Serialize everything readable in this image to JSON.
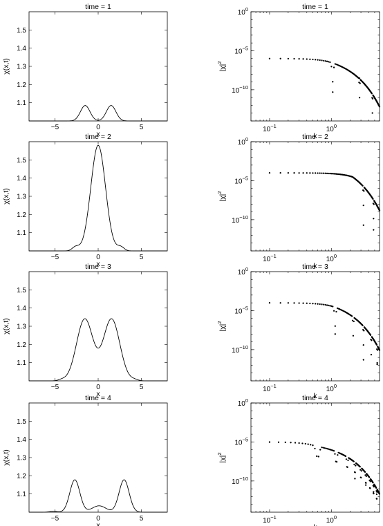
{
  "chart_data": [
    {
      "type": "line",
      "panel": "left-1",
      "title": "time = 1",
      "xlabel": "x",
      "ylabel": "χ(x,t)",
      "xlim": [
        -8,
        8
      ],
      "ylim": [
        1.0,
        1.6
      ],
      "xticks": [
        -5,
        0,
        5
      ],
      "yticks": [
        1.1,
        1.2,
        1.3,
        1.4,
        1.5
      ],
      "series": [
        {
          "gaussians": [
            [
              -1.5,
              0.085,
              0.55
            ],
            [
              1.5,
              0.085,
              0.55
            ]
          ]
        }
      ]
    },
    {
      "type": "scatter",
      "panel": "right-1",
      "title": "time = 1",
      "xlabel": "k",
      "ylabel": "|χ|",
      "ylabel_exp": "2",
      "xscale": "log",
      "yscale": "log",
      "xlim": [
        0.05,
        6
      ],
      "ylim": [
        1e-14,
        1
      ],
      "xticks": [
        {
          "v": 0.1,
          "b": "10",
          "e": "−1"
        },
        {
          "v": 1,
          "b": "10",
          "e": "0"
        }
      ],
      "yticks": [
        {
          "v": 1,
          "b": "10",
          "e": "0"
        },
        {
          "v": 1e-05,
          "b": "10",
          "e": "−5"
        },
        {
          "v": 1e-10,
          "b": "10",
          "e": "−10"
        }
      ],
      "spectrum": {
        "base": 1e-06,
        "k0": 1.0,
        "zeros": [
          1.05,
          2.85,
          4.6
        ],
        "spacing": 0.05,
        "kmax": 6,
        "outliers": [
          [
            1.05,
            5e-11
          ],
          [
            2.85,
            3e-09
          ]
        ]
      }
    },
    {
      "type": "line",
      "panel": "left-2",
      "title": "time = 2",
      "xlabel": "x",
      "ylabel": "χ(x,t)",
      "xlim": [
        -8,
        8
      ],
      "ylim": [
        1.0,
        1.6
      ],
      "xticks": [
        -5,
        0,
        5
      ],
      "yticks": [
        1.1,
        1.2,
        1.3,
        1.4,
        1.5
      ],
      "series": [
        {
          "gaussians": [
            [
              0,
              0.58,
              0.85
            ],
            [
              -2.6,
              0.022,
              0.4
            ],
            [
              2.6,
              0.022,
              0.4
            ]
          ]
        }
      ]
    },
    {
      "type": "scatter",
      "panel": "right-2",
      "title": "time = 2",
      "xlabel": "k",
      "ylabel": "|χ|",
      "ylabel_exp": "2",
      "xscale": "log",
      "yscale": "log",
      "xlim": [
        0.05,
        6
      ],
      "ylim": [
        1e-14,
        1
      ],
      "xticks": [
        {
          "v": 0.1,
          "b": "10",
          "e": "−1"
        },
        {
          "v": 1,
          "b": "10",
          "e": "0"
        }
      ],
      "yticks": [
        {
          "v": 1,
          "b": "10",
          "e": "0"
        },
        {
          "v": 1e-05,
          "b": "10",
          "e": "−5"
        },
        {
          "v": 1e-10,
          "b": "10",
          "e": "−10"
        }
      ],
      "spectrum": {
        "base": 0.0001,
        "k0": 2.2,
        "zeros": [
          3.3,
          4.8
        ],
        "spacing": 0.05,
        "kmax": 6,
        "outliers": [
          [
            3.3,
            2e-11
          ],
          [
            4.8,
            5e-12
          ]
        ]
      }
    },
    {
      "type": "line",
      "panel": "left-3",
      "title": "time = 3",
      "xlabel": "x",
      "ylabel": "χ(x,t)",
      "xlim": [
        -8,
        8
      ],
      "ylim": [
        1.0,
        1.6
      ],
      "xticks": [
        -5,
        0,
        5
      ],
      "yticks": [
        1.1,
        1.2,
        1.3,
        1.4,
        1.5
      ],
      "series": [
        {
          "gaussians": [
            [
              -1.55,
              0.34,
              0.95
            ],
            [
              1.55,
              0.34,
              0.95
            ],
            [
              -4.2,
              0.006,
              0.4
            ],
            [
              4.2,
              0.006,
              0.4
            ]
          ]
        }
      ]
    },
    {
      "type": "scatter",
      "panel": "right-3",
      "title": "time = 3",
      "xlabel": "k",
      "ylabel": "|χ|",
      "ylabel_exp": "2",
      "xscale": "log",
      "yscale": "log",
      "xlim": [
        0.05,
        6
      ],
      "ylim": [
        1e-14,
        1
      ],
      "xticks": [
        {
          "v": 0.1,
          "b": "10",
          "e": "−1"
        },
        {
          "v": 1,
          "b": "10",
          "e": "0"
        }
      ],
      "yticks": [
        {
          "v": 1,
          "b": "10",
          "e": "0"
        },
        {
          "v": 1e-05,
          "b": "10",
          "e": "−5"
        },
        {
          "v": 1e-10,
          "b": "10",
          "e": "−10"
        }
      ],
      "spectrum": {
        "base": 0.0001,
        "k0": 1.1,
        "zeros": [
          1.15,
          2.25,
          3.3,
          4.4,
          5.5
        ],
        "spacing": 0.05,
        "kmax": 6,
        "outliers": [
          [
            1.15,
            1e-08
          ],
          [
            3.3,
            5e-12
          ],
          [
            5.5,
            2e-12
          ]
        ]
      }
    },
    {
      "type": "line",
      "panel": "left-4",
      "title": "time = 4",
      "xlabel": "x",
      "ylabel": "χ(x,t)",
      "xlim": [
        -8,
        8
      ],
      "ylim": [
        1.0,
        1.6
      ],
      "xticks": [
        -5,
        0,
        5
      ],
      "yticks": [
        1.1,
        1.2,
        1.3,
        1.4,
        1.5
      ],
      "series": [
        {
          "gaussians": [
            [
              -2.7,
              0.178,
              0.58
            ],
            [
              3.0,
              0.178,
              0.58
            ],
            [
              0.1,
              0.035,
              0.8
            ],
            [
              -5.2,
              0.005,
              0.4
            ]
          ]
        }
      ]
    },
    {
      "type": "scatter",
      "panel": "right-4",
      "title": "time = 4",
      "xlabel": "k",
      "ylabel": "|χ|",
      "ylabel_exp": "2",
      "xscale": "log",
      "yscale": "log",
      "xlim": [
        0.05,
        6
      ],
      "ylim": [
        1e-14,
        1
      ],
      "xticks": [
        {
          "v": 0.1,
          "b": "10",
          "e": "−1"
        },
        {
          "v": 1,
          "b": "10",
          "e": "0"
        }
      ],
      "yticks": [
        {
          "v": 1,
          "b": "10",
          "e": "0"
        },
        {
          "v": 1e-05,
          "b": "10",
          "e": "−5"
        },
        {
          "v": 1e-10,
          "b": "10",
          "e": "−10"
        }
      ],
      "spectrum": {
        "base": 1e-05,
        "k0": 0.55,
        "zeros": [
          0.6,
          1.2,
          1.8,
          2.4,
          3.0,
          3.6,
          4.2,
          4.8,
          5.4
        ],
        "spacing": 0.04,
        "kmax": 6,
        "outliers": [
          [
            2.4,
            2e-10
          ],
          [
            3.6,
            3e-11
          ],
          [
            4.8,
            4e-12
          ],
          [
            5.4,
            2e-12
          ]
        ]
      }
    }
  ]
}
